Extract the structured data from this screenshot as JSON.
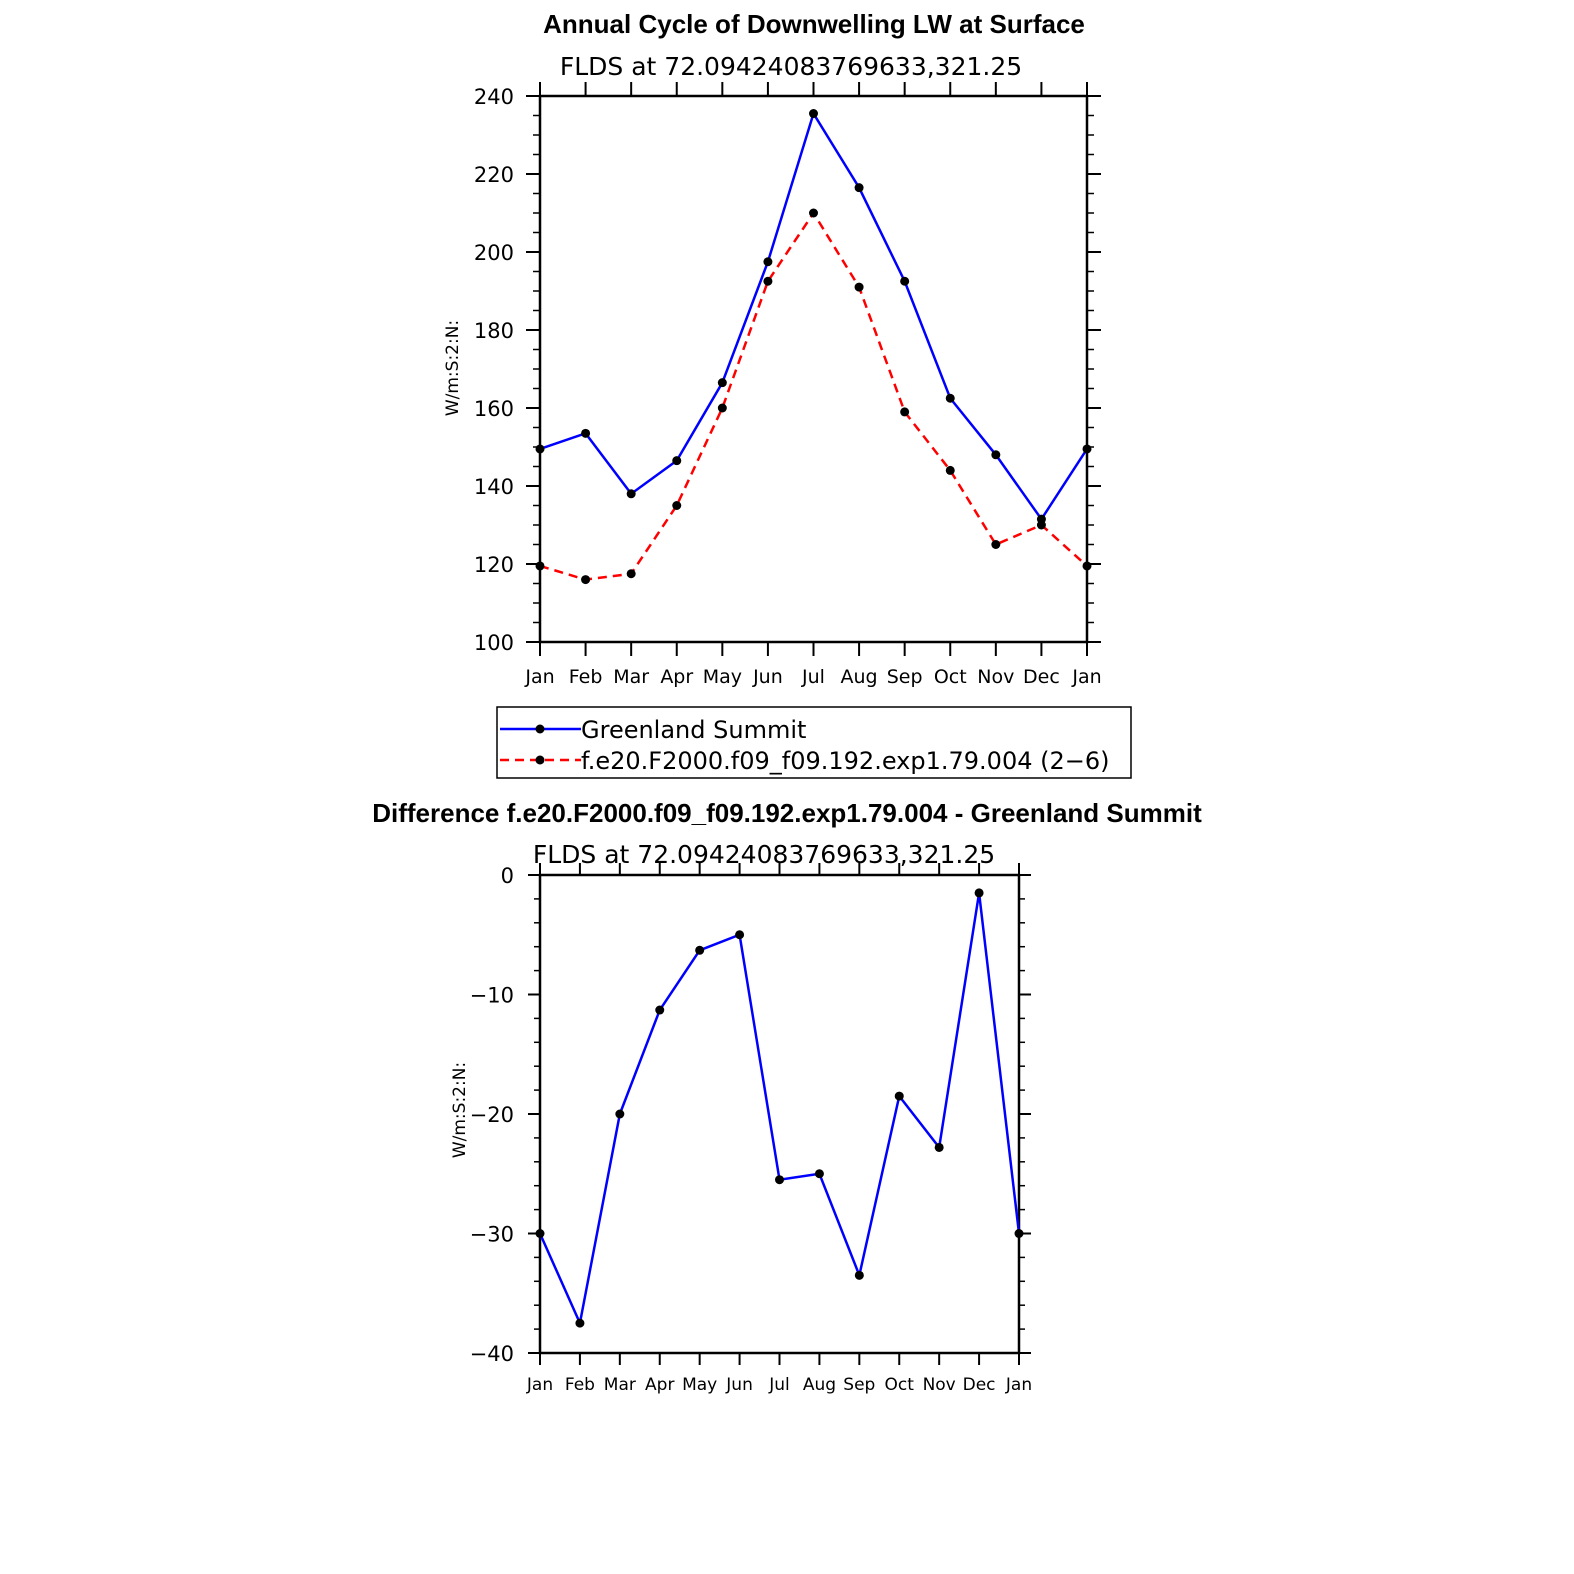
{
  "chart_data": [
    {
      "type": "line",
      "title": "Annual Cycle of Downwelling LW at Surface",
      "subtitle": "FLDS at 72.09424083769633,321.25",
      "xlabel": "",
      "ylabel": "W/m:S:2:N:",
      "categories": [
        "Jan",
        "Feb",
        "Mar",
        "Apr",
        "May",
        "Jun",
        "Jul",
        "Aug",
        "Sep",
        "Oct",
        "Nov",
        "Dec",
        "Jan"
      ],
      "ylim": [
        100,
        240
      ],
      "yticks": [
        100,
        120,
        140,
        160,
        180,
        200,
        220,
        240
      ],
      "series": [
        {
          "name": "Greenland Summit",
          "color": "#0000ff",
          "dash": "solid",
          "values": [
            149.5,
            153.5,
            138,
            146.5,
            166.5,
            197.5,
            235.5,
            216.5,
            192.5,
            162.5,
            148,
            131.5,
            149.5
          ]
        },
        {
          "name": "f.e20.F2000.f09_f09.192.exp1.79.004 (2−6)",
          "color": "#ff0000",
          "dash": "dashed",
          "values": [
            119.5,
            116,
            117.5,
            135,
            160,
            192.5,
            210,
            191,
            159,
            144,
            125,
            130,
            119.5
          ]
        }
      ],
      "legend": "below"
    },
    {
      "type": "line",
      "title": "Difference f.e20.F2000.f09_f09.192.exp1.79.004 - Greenland Summit",
      "subtitle": "FLDS at 72.09424083769633,321.25",
      "xlabel": "",
      "ylabel": "W/m:S:2:N:",
      "categories": [
        "Jan",
        "Feb",
        "Mar",
        "Apr",
        "May",
        "Jun",
        "Jul",
        "Aug",
        "Sep",
        "Oct",
        "Nov",
        "Dec",
        "Jan"
      ],
      "ylim": [
        -40,
        0
      ],
      "yticks": [
        -40,
        -30,
        -20,
        -10,
        0
      ],
      "ytick_labels": [
        "−40",
        "−30",
        "−20",
        "−10",
        "0"
      ],
      "series": [
        {
          "color": "#0000ff",
          "dash": "solid",
          "values": [
            -30,
            -37.5,
            -20,
            -11.3,
            -6.3,
            -5,
            -25.5,
            -25,
            -33.5,
            -18.5,
            -22.8,
            -1.5,
            -30
          ]
        }
      ]
    }
  ]
}
